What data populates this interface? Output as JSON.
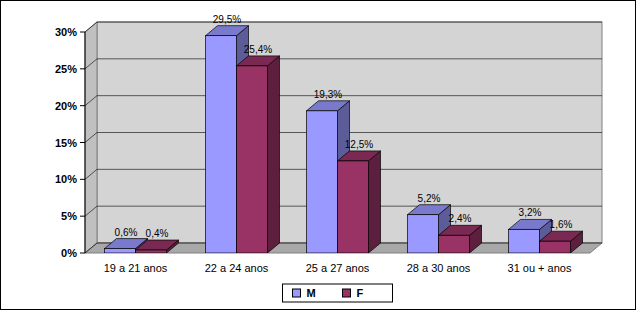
{
  "chart_data": {
    "type": "bar",
    "categories": [
      "19 a 21 anos",
      "22 a 24 anos",
      "25 a 27 anos",
      "28 a 30 anos",
      "31 ou + anos"
    ],
    "series": [
      {
        "name": "M",
        "color": "#9999ff",
        "values": [
          0.6,
          29.5,
          19.3,
          5.2,
          3.2
        ],
        "value_labels": [
          "0,6%",
          "29,5%",
          "19,3%",
          "5,2%",
          "3,2%"
        ]
      },
      {
        "name": "F",
        "color": "#993366",
        "values": [
          0.4,
          25.4,
          12.5,
          2.4,
          1.6
        ],
        "value_labels": [
          "0,4%",
          "25,4%",
          "12,5%",
          "2,4%",
          "1,6%"
        ]
      }
    ],
    "ylim": [
      0,
      30
    ],
    "yticks": [
      {
        "value": 0,
        "label": "0%"
      },
      {
        "value": 5,
        "label": "5%"
      },
      {
        "value": 10,
        "label": "10%"
      },
      {
        "value": 15,
        "label": "15%"
      },
      {
        "value": 20,
        "label": "20%"
      },
      {
        "value": 25,
        "label": "25%"
      },
      {
        "value": 30,
        "label": "30%"
      }
    ],
    "grid": true,
    "legend": "bottom",
    "data_labels": true
  }
}
